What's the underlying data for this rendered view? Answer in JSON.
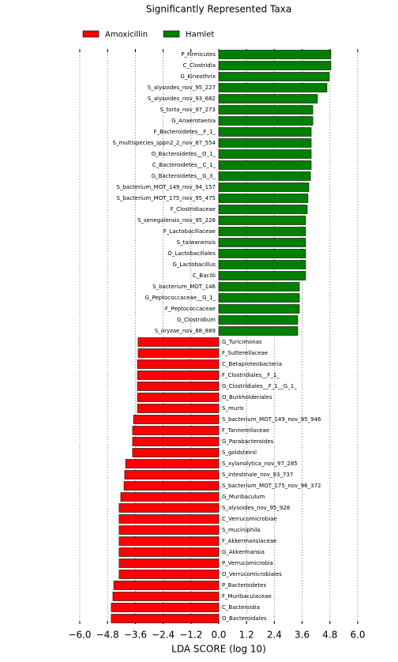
{
  "chart_data": {
    "type": "bar",
    "orientation": "horizontal",
    "title": "Significantly Represented Taxa",
    "xlabel": "LDA SCORE (log 10)",
    "xlim": [
      -6,
      6
    ],
    "xticks": [
      {
        "value": -6,
        "label": "−6.0"
      },
      {
        "value": -4.8,
        "label": "−4.8"
      },
      {
        "value": -3.6,
        "label": "−3.6"
      },
      {
        "value": -2.4,
        "label": "−2.4"
      },
      {
        "value": -1.2,
        "label": "−1.2"
      },
      {
        "value": 0,
        "label": "0.0"
      },
      {
        "value": 1.2,
        "label": "1.2"
      },
      {
        "value": 2.4,
        "label": "2.4"
      },
      {
        "value": 3.6,
        "label": "3.6"
      },
      {
        "value": 4.8,
        "label": "4.8"
      },
      {
        "value": 6,
        "label": "6.0"
      }
    ],
    "grid": true,
    "legend": "top-left",
    "categories": [
      "P_Firmicutes",
      "C_Clostridia",
      "G_Kineothrix",
      "S_alysoides_nov_95_227",
      "S_alysoides_nov_93_682",
      "S_torta_nov_97_273",
      "G_Anaerotaenia",
      "F_Bacteroidetes__F_1_",
      "S_multispecies_sppn2_2_nov_87_554",
      "O_Bacteroidetes__O_1_",
      "C_Bacteroidetes__C_1_",
      "G_Bacteroidetes__G_3_",
      "S_bacterium_MOT_149_nov_94_157",
      "S_bacterium_MOT_175_nov_95_475",
      "F_Clostridiaceae",
      "S_senegalensis_nov_95_228",
      "F_Lactobacillaceae",
      "S_taiwanensis",
      "O_Lactobacillales",
      "G_Lactobacillus",
      "C_Bacilli",
      "S_bacterium_MOT_146",
      "G_Peptococcaceae__G_1_",
      "F_Peptococcaceae",
      "G_Clostridium",
      "S_oryzae_nov_88_889",
      "G_Turicimonas",
      "F_Sutterellaceae",
      "C_Betaproteobacteria",
      "F_Clostridiales__F_1_",
      "G_Clostridiales__F_1__G_1_",
      "O_Burkholderiales",
      "S_muris",
      "S_bacterium_MOT_149_nov_95_946",
      "F_Tannerellaceae",
      "G_Parabacteroides",
      "S_goldsteinii",
      "S_xylanolytica_nov_97_285",
      "S_intestinale_nov_93_737",
      "S_bacterium_MOT_175_nov_96_372",
      "G_Muribaculum",
      "S_alysoides_nov_95_928",
      "C_Verrucomicrobiae",
      "S_muciniphila",
      "F_Akkermansiaceae",
      "G_Akkermansia",
      "P_Verrucomicrobia",
      "O_Verrucomicrobiales",
      "P_Bacteroidetes",
      "F_Muribaculaceae",
      "C_Bacteroidia",
      "O_Bacteroidales"
    ],
    "series": [
      {
        "name": "Amoxicillin",
        "color": "#ff0000",
        "values": [
          null,
          null,
          null,
          null,
          null,
          null,
          null,
          null,
          null,
          null,
          null,
          null,
          null,
          null,
          null,
          null,
          null,
          null,
          null,
          null,
          null,
          null,
          null,
          null,
          null,
          null,
          -3.48,
          -3.48,
          -3.51,
          -3.51,
          -3.51,
          -3.51,
          -3.51,
          -3.68,
          -3.72,
          -3.72,
          -3.72,
          -4.02,
          -4.06,
          -4.09,
          -4.23,
          -4.3,
          -4.3,
          -4.3,
          -4.3,
          -4.3,
          -4.3,
          -4.3,
          -4.53,
          -4.57,
          -4.64,
          -4.64
        ]
      },
      {
        "name": "Hamlet",
        "color": "#008000",
        "values": [
          4.84,
          4.84,
          4.77,
          4.67,
          4.26,
          4.06,
          4.06,
          3.99,
          3.99,
          3.99,
          3.99,
          3.96,
          3.89,
          3.85,
          3.82,
          3.75,
          3.75,
          3.75,
          3.75,
          3.75,
          3.75,
          3.48,
          3.48,
          3.48,
          3.41,
          3.41,
          null,
          null,
          null,
          null,
          null,
          null,
          null,
          null,
          null,
          null,
          null,
          null,
          null,
          null,
          null,
          null,
          null,
          null,
          null,
          null,
          null,
          null,
          null,
          null,
          null,
          null
        ]
      }
    ]
  }
}
